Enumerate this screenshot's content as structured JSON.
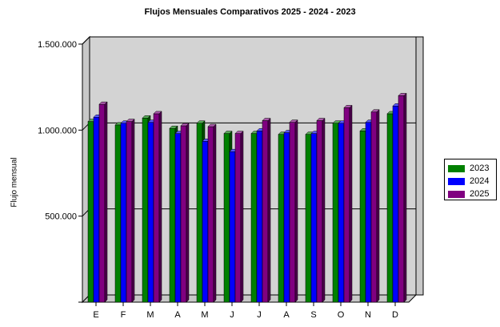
{
  "chart_data": {
    "type": "bar",
    "title": "Flujos Mensuales Comparativos 2025 - 2024 - 2023",
    "ylabel": "Flujo mensual",
    "xlabel": "",
    "categories": [
      "E",
      "F",
      "M",
      "A",
      "M",
      "J",
      "J",
      "A",
      "S",
      "O",
      "N",
      "D"
    ],
    "series": [
      {
        "name": "2023",
        "color": "#008000",
        "values": [
          1050000,
          1030000,
          1070000,
          1010000,
          1040000,
          980000,
          980000,
          975000,
          975000,
          1040000,
          995000,
          1095000
        ]
      },
      {
        "name": "2024",
        "color": "#0000ff",
        "values": [
          1075000,
          1040000,
          1045000,
          980000,
          935000,
          875000,
          995000,
          985000,
          980000,
          1040000,
          1045000,
          1140000
        ]
      },
      {
        "name": "2025",
        "color": "#800080",
        "values": [
          1150000,
          1050000,
          1095000,
          1025000,
          1020000,
          980000,
          1055000,
          1045000,
          1055000,
          1130000,
          1105000,
          1200000
        ]
      }
    ],
    "ylim": [
      0,
      1500000
    ],
    "yticks": [
      500000,
      1000000,
      1500000
    ],
    "ytick_labels": [
      "500.000",
      "1.000.000",
      "1.500.000"
    ],
    "grid": true,
    "legend_position": "right",
    "plot_background": "#d3d3d3"
  }
}
